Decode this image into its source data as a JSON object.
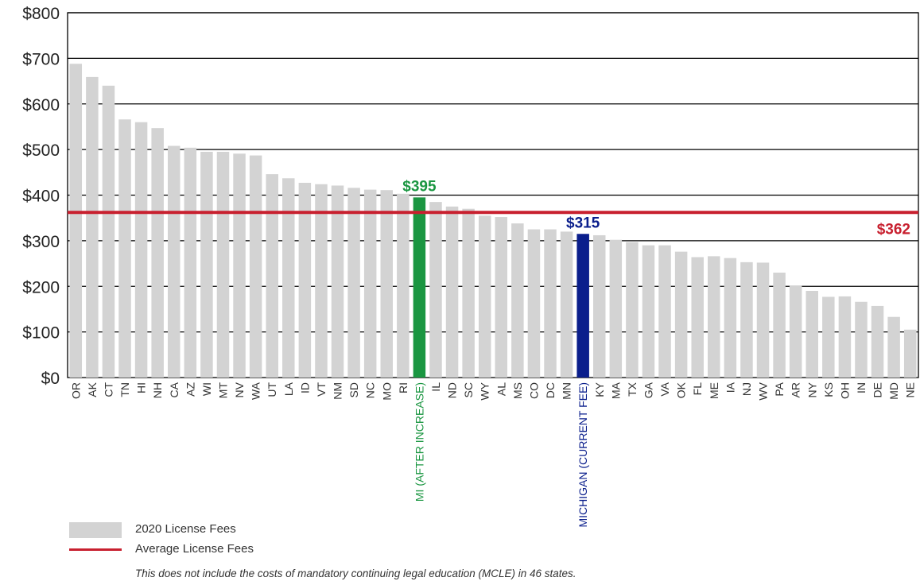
{
  "chart_data": {
    "type": "bar",
    "categories": [
      "OR",
      "AK",
      "CT",
      "TN",
      "HI",
      "NH",
      "CA",
      "AZ",
      "WI",
      "MT",
      "NV",
      "WA",
      "UT",
      "LA",
      "ID",
      "VT",
      "NM",
      "SD",
      "NC",
      "MO",
      "RI",
      "MI (AFTER INCREASE)",
      "IL",
      "ND",
      "SC",
      "WY",
      "AL",
      "MS",
      "CO",
      "DC",
      "MN",
      "MICHIGAN (CURRENT FEE)",
      "KY",
      "MA",
      "TX",
      "GA",
      "VA",
      "OK",
      "FL",
      "ME",
      "IA",
      "NJ",
      "WV",
      "PA",
      "AR",
      "NY",
      "KS",
      "OH",
      "IN",
      "DE",
      "MD",
      "NE"
    ],
    "values": [
      688,
      659,
      640,
      566,
      560,
      547,
      508,
      504,
      495,
      495,
      491,
      487,
      446,
      437,
      427,
      424,
      421,
      416,
      412,
      411,
      403,
      395,
      385,
      375,
      370,
      355,
      352,
      338,
      325,
      325,
      320,
      315,
      312,
      302,
      297,
      290,
      290,
      276,
      264,
      266,
      262,
      253,
      252,
      230,
      202,
      190,
      177,
      178,
      166,
      157,
      133,
      105
    ],
    "ylim": [
      0,
      800
    ],
    "yticks": [
      "$0",
      "$100",
      "$200",
      "$300",
      "$400",
      "$500",
      "$600",
      "$700",
      "$800"
    ],
    "highlights": [
      {
        "category": "MI (AFTER INCREASE)",
        "label": "$395",
        "color": "#1a9641"
      },
      {
        "category": "MICHIGAN (CURRENT FEE)",
        "label": "$315",
        "color": "#0a1e8c"
      }
    ],
    "average": {
      "value": 362,
      "label": "$362",
      "color": "#c8202f"
    },
    "bar_color": "#d3d3d3",
    "grid": true
  },
  "legend": {
    "bars_label": "2020 License Fees",
    "line_label": "Average License Fees"
  },
  "footnote": "This does not include the costs of mandatory continuing legal education (MCLE) in 46 states."
}
